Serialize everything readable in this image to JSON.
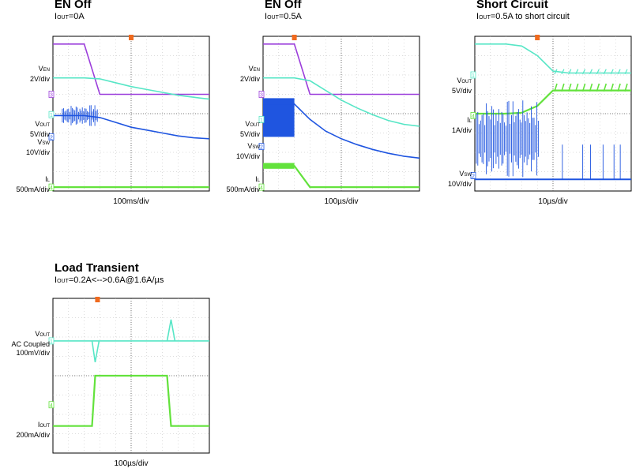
{
  "colors": {
    "purple": "#9b3ddb",
    "cyan": "#57e6c6",
    "blue": "#1f55e0",
    "green": "#63e23c",
    "orange": "#f06a1e",
    "grid": "#b9b9b9"
  },
  "panels": [
    {
      "title": "EN Off",
      "subtitle": {
        "main": "I",
        "sub": "OUT",
        "rest": "=0A"
      },
      "x_scale": "100ms/div",
      "channels": [
        {
          "name": "V",
          "sub": "EN",
          "scale": "2V/div",
          "marker": "3"
        },
        {
          "name": "V",
          "sub": "OUT",
          "scale": "5V/div",
          "marker": "1"
        },
        {
          "name": "V",
          "sub": "SW",
          "scale": "10V/div",
          "marker": "2"
        },
        {
          "name": "I",
          "sub": "L",
          "scale": "500mA/div",
          "marker": "4"
        }
      ]
    },
    {
      "title": "EN Off",
      "subtitle": {
        "main": "I",
        "sub": "OUT",
        "rest": "=0.5A"
      },
      "x_scale": "100µs/div",
      "channels": [
        {
          "name": "V",
          "sub": "EN",
          "scale": "2V/div",
          "marker": "3"
        },
        {
          "name": "V",
          "sub": "OUT",
          "scale": "5V/div",
          "marker": "1"
        },
        {
          "name": "V",
          "sub": "SW",
          "scale": "10V/div",
          "marker": "2"
        },
        {
          "name": "I",
          "sub": "L",
          "scale": "500mA/div",
          "marker": "4"
        }
      ]
    },
    {
      "title": "Short Circuit",
      "subtitle": {
        "main": "I",
        "sub": "OUT",
        "rest": "=0.5A to short circuit"
      },
      "x_scale": "10µs/div",
      "channels": [
        {
          "name": "V",
          "sub": "OUT",
          "scale": "5V/div",
          "marker": "1"
        },
        {
          "name": "I",
          "sub": "L",
          "scale": "1A/div",
          "marker": "4"
        },
        {
          "name": "V",
          "sub": "SW",
          "scale": "10V/div",
          "marker": "2"
        }
      ]
    },
    {
      "title": "Load Transient",
      "subtitle": {
        "main": "I",
        "sub": "OUT",
        "rest": "=0.2A<-->0.6A@1.6A/µs"
      },
      "x_scale": "100µs/div",
      "channels": [
        {
          "name": "V",
          "sub": "OUT",
          "scale": "AC Coupled",
          "scale2": "100mV/div",
          "marker": "1"
        },
        {
          "name": "I",
          "sub": "OUT",
          "scale": "200mA/div",
          "marker": "4"
        }
      ]
    }
  ],
  "chart_data": [
    {
      "type": "line",
      "title": "EN Off",
      "subtitle": "IOUT=0A",
      "xlabel": "100ms/div",
      "x": [
        0,
        1,
        2,
        3,
        4,
        5,
        6,
        7,
        8,
        9,
        10
      ],
      "series": [
        {
          "name": "VEN",
          "values": [
            3.6,
            3.6,
            3.6,
            1.0,
            1.0,
            1.0,
            1.0,
            1.0,
            1.0,
            1.0,
            1.0
          ]
        },
        {
          "name": "VOUT",
          "values": [
            1.85,
            1.85,
            1.85,
            1.8,
            1.6,
            1.4,
            1.25,
            1.1,
            0.95,
            0.85,
            0.75
          ]
        },
        {
          "name": "VSW",
          "values": [
            -0.1,
            -0.1,
            -0.1,
            -0.2,
            -0.45,
            -0.7,
            -0.85,
            -1.0,
            -1.15,
            -1.25,
            -1.3
          ]
        },
        {
          "name": "IL",
          "values": [
            -3.8,
            -3.8,
            -3.8,
            -3.8,
            -3.8,
            -3.8,
            -3.8,
            -3.8,
            -3.8,
            -3.8,
            -3.8
          ]
        }
      ]
    },
    {
      "type": "line",
      "title": "EN Off",
      "subtitle": "IOUT=0.5A",
      "xlabel": "100µs/div",
      "x": [
        0,
        1,
        2,
        3,
        4,
        5,
        6,
        7,
        8,
        9,
        10
      ],
      "series": [
        {
          "name": "VEN",
          "values": [
            3.6,
            3.6,
            3.6,
            1.0,
            1.0,
            1.0,
            1.0,
            1.0,
            1.0,
            1.0,
            1.0
          ]
        },
        {
          "name": "VOUT",
          "values": [
            1.85,
            1.85,
            1.85,
            1.7,
            1.2,
            0.7,
            0.3,
            -0.05,
            -0.35,
            -0.55,
            -0.65
          ]
        },
        {
          "name": "VSW",
          "values": [
            0.5,
            0.5,
            0.5,
            -0.3,
            -0.9,
            -1.3,
            -1.6,
            -1.85,
            -2.05,
            -2.2,
            -2.3
          ]
        },
        {
          "name": "IL",
          "values": [
            -2.7,
            -2.7,
            -2.7,
            -3.8,
            -3.8,
            -3.8,
            -3.8,
            -3.8,
            -3.8,
            -3.8,
            -3.8
          ]
        }
      ]
    },
    {
      "type": "line",
      "title": "Short Circuit",
      "subtitle": "IOUT=0.5A to short circuit",
      "xlabel": "10µs/div",
      "x": [
        0,
        1,
        2,
        3,
        4,
        5,
        6,
        7,
        8,
        9,
        10
      ],
      "series": [
        {
          "name": "VOUT",
          "values": [
            3.6,
            3.6,
            3.6,
            3.5,
            3.0,
            2.2,
            2.1,
            2.1,
            2.1,
            2.1,
            2.1
          ]
        },
        {
          "name": "IL",
          "values": [
            0.0,
            0.0,
            0.0,
            0.05,
            0.4,
            1.2,
            1.2,
            1.2,
            1.2,
            1.2,
            1.2
          ]
        },
        {
          "name": "VSW",
          "values": [
            -3.4,
            -3.4,
            -3.4,
            -3.4,
            -3.4,
            -3.4,
            -3.4,
            -3.4,
            -3.4,
            -3.4,
            -3.4
          ]
        }
      ]
    },
    {
      "type": "line",
      "title": "Load Transient",
      "subtitle": "IOUT=0.2A<-->0.6A@1.6A/µs",
      "xlabel": "100µs/div",
      "x": [
        0,
        1,
        2,
        3,
        4,
        5,
        6,
        7,
        8,
        9,
        10
      ],
      "series": [
        {
          "name": "VOUT",
          "values": [
            1.8,
            1.8,
            1.8,
            1.8,
            1.8,
            1.8,
            1.8,
            1.8,
            1.8,
            1.8,
            1.8
          ]
        },
        {
          "name": "IOUT",
          "values": [
            -2.6,
            -2.6,
            -2.6,
            0.0,
            0.0,
            0.0,
            0.0,
            -2.6,
            -2.6,
            -2.6,
            -2.6
          ]
        }
      ]
    }
  ]
}
